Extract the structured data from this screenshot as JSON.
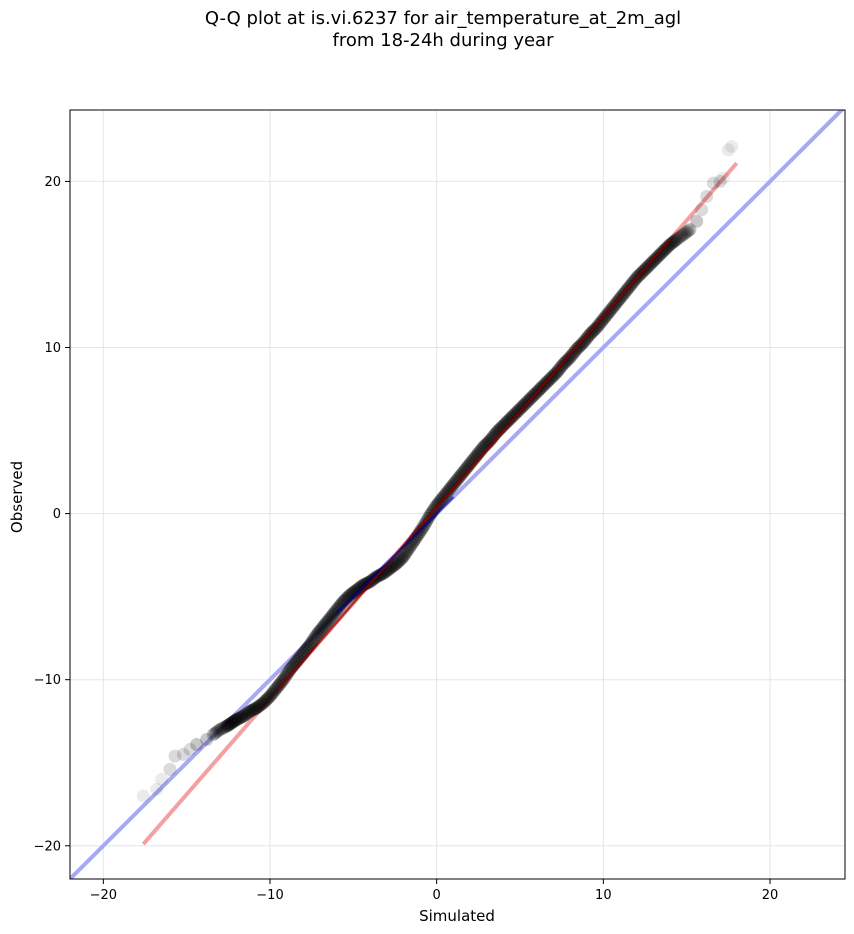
{
  "chart_data": {
    "type": "scatter",
    "title_lines": [
      "Q-Q plot at is.vi.6237 for air_temperature_at_2m_agl",
      "from 18-24h during year"
    ],
    "xlabel": "Simulated",
    "ylabel": "Observed",
    "xlim": [
      -22,
      24.5
    ],
    "ylim": [
      -22,
      24.3
    ],
    "xticks": [
      -20,
      -10,
      0,
      10,
      20
    ],
    "yticks": [
      -20,
      -10,
      0,
      10,
      20
    ],
    "xtick_labels": [
      "−20",
      "−10",
      "0",
      "10",
      "20"
    ],
    "ytick_labels": [
      "−20",
      "−10",
      "0",
      "10",
      "20"
    ],
    "grid": true,
    "colors": {
      "points": "#000000",
      "fit_line": "#f4a0a0",
      "fit_line_inner": "#8b0000",
      "identity_line": "#a8a8f4",
      "identity_line_inner": "#00008b",
      "grid": "#e6e6e6"
    },
    "series": [
      {
        "kind": "quantile_points",
        "values": [
          [
            -17.6,
            -17.0
          ],
          [
            -16.8,
            -16.6
          ],
          [
            -16.5,
            -16.0
          ],
          [
            -16.0,
            -15.4
          ],
          [
            -15.7,
            -14.6
          ],
          [
            -15.2,
            -14.5
          ],
          [
            -14.8,
            -14.2
          ],
          [
            -14.4,
            -13.9
          ],
          [
            -13.8,
            -13.6
          ],
          [
            -13.4,
            -13.3
          ],
          [
            -13.0,
            -13.0
          ],
          [
            -12.6,
            -12.8
          ],
          [
            -12.3,
            -12.6
          ],
          [
            -12.0,
            -12.4
          ],
          [
            -11.6,
            -12.2
          ],
          [
            -11.2,
            -11.9
          ],
          [
            -10.8,
            -11.7
          ],
          [
            -10.4,
            -11.4
          ],
          [
            -10.0,
            -11.0
          ],
          [
            -9.6,
            -10.5
          ],
          [
            -9.2,
            -10.0
          ],
          [
            -8.8,
            -9.4
          ],
          [
            -8.4,
            -8.9
          ],
          [
            -8.0,
            -8.4
          ],
          [
            -7.6,
            -7.9
          ],
          [
            -7.2,
            -7.3
          ],
          [
            -6.8,
            -6.8
          ],
          [
            -6.4,
            -6.3
          ],
          [
            -6.0,
            -5.8
          ],
          [
            -5.6,
            -5.3
          ],
          [
            -5.2,
            -4.9
          ],
          [
            -4.8,
            -4.6
          ],
          [
            -4.4,
            -4.3
          ],
          [
            -4.0,
            -4.1
          ],
          [
            -3.6,
            -3.8
          ],
          [
            -3.2,
            -3.6
          ],
          [
            -2.8,
            -3.3
          ],
          [
            -2.4,
            -3.0
          ],
          [
            -2.0,
            -2.6
          ],
          [
            -1.6,
            -2.0
          ],
          [
            -1.2,
            -1.4
          ],
          [
            -0.8,
            -0.8
          ],
          [
            -0.4,
            -0.1
          ],
          [
            0.0,
            0.5
          ],
          [
            0.4,
            1.0
          ],
          [
            0.8,
            1.5
          ],
          [
            1.2,
            2.0
          ],
          [
            1.6,
            2.5
          ],
          [
            2.0,
            3.0
          ],
          [
            2.4,
            3.5
          ],
          [
            2.8,
            4.0
          ],
          [
            3.2,
            4.4
          ],
          [
            3.6,
            4.9
          ],
          [
            4.0,
            5.3
          ],
          [
            4.4,
            5.7
          ],
          [
            4.8,
            6.1
          ],
          [
            5.2,
            6.5
          ],
          [
            5.6,
            6.9
          ],
          [
            6.0,
            7.3
          ],
          [
            6.4,
            7.7
          ],
          [
            6.8,
            8.1
          ],
          [
            7.2,
            8.5
          ],
          [
            7.6,
            9.0
          ],
          [
            8.0,
            9.4
          ],
          [
            8.4,
            9.9
          ],
          [
            8.8,
            10.3
          ],
          [
            9.2,
            10.8
          ],
          [
            9.6,
            11.2
          ],
          [
            10.0,
            11.7
          ],
          [
            10.4,
            12.2
          ],
          [
            10.8,
            12.7
          ],
          [
            11.2,
            13.2
          ],
          [
            11.6,
            13.7
          ],
          [
            12.0,
            14.2
          ],
          [
            12.4,
            14.6
          ],
          [
            12.8,
            15.0
          ],
          [
            13.2,
            15.4
          ],
          [
            13.6,
            15.8
          ],
          [
            14.0,
            16.2
          ],
          [
            14.4,
            16.5
          ],
          [
            14.8,
            16.8
          ],
          [
            15.2,
            17.1
          ],
          [
            15.6,
            17.6
          ],
          [
            15.9,
            18.3
          ],
          [
            16.2,
            19.1
          ],
          [
            16.6,
            19.9
          ],
          [
            17.0,
            20.0
          ],
          [
            17.2,
            20.2
          ],
          [
            17.5,
            21.9
          ],
          [
            17.7,
            22.1
          ]
        ]
      },
      {
        "kind": "fit_line",
        "points": [
          [
            -17.6,
            -19.9
          ],
          [
            18.0,
            21.1
          ]
        ]
      },
      {
        "kind": "identity_line",
        "points": [
          [
            -22,
            -22
          ],
          [
            24.5,
            24.5
          ]
        ]
      }
    ]
  }
}
